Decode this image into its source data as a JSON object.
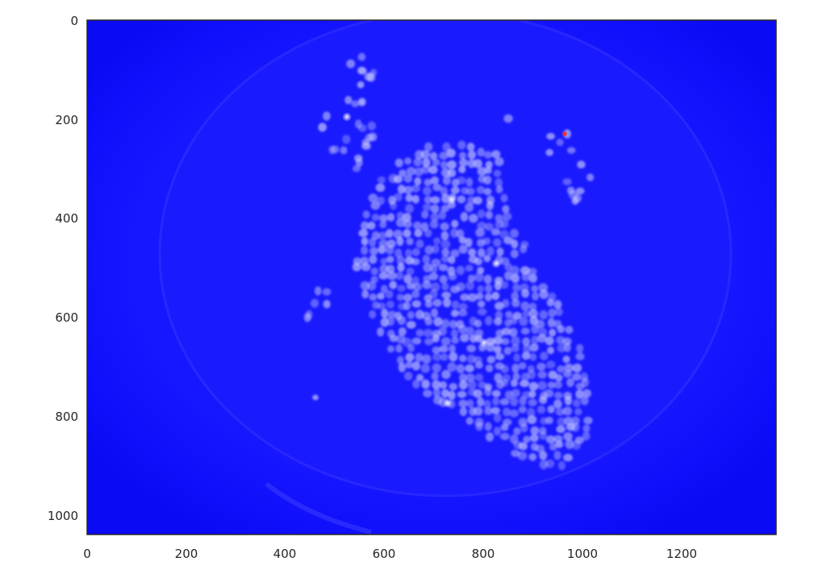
{
  "chart_data": {
    "type": "image",
    "description_free": true,
    "title": "",
    "xlabel": "",
    "ylabel": "",
    "xlim": [
      0,
      1392
    ],
    "ylim": [
      1040,
      0
    ],
    "x_ticks": [
      0,
      200,
      400,
      600,
      800,
      1000,
      1200
    ],
    "y_ticks": [
      0,
      200,
      400,
      600,
      800,
      1000
    ],
    "grid": false,
    "legend": "none",
    "colors": {
      "background": "#1212ff",
      "cells": "#c4c8ff",
      "bright_spot": "#ffffff",
      "marker": "#ff2a1a",
      "frame": "#262626"
    }
  }
}
